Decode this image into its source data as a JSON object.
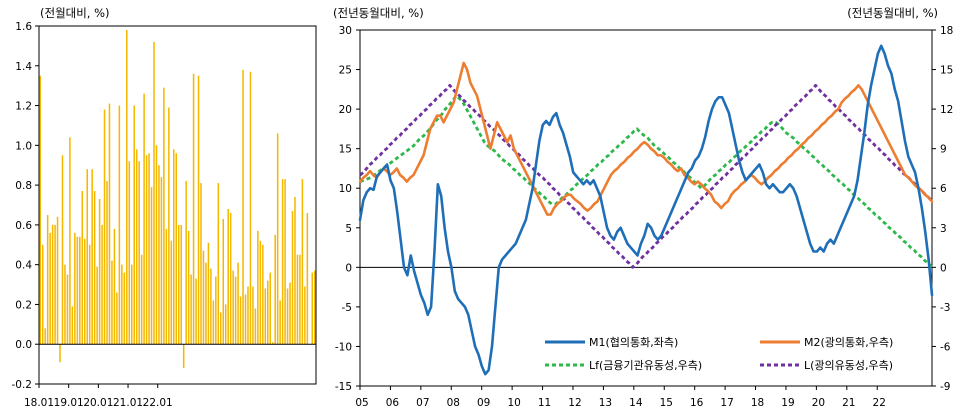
{
  "chart_data": [
    {
      "type": "bar",
      "unit_label": "(전월대비, %)",
      "ylim": [
        -0.2,
        1.6
      ],
      "y_ticks": [
        "1.6",
        "1.4",
        "1.2",
        "1.0",
        "0.8",
        "0.6",
        "0.4",
        "0.2",
        "0.0",
        "-0.2"
      ],
      "x_ticks": [
        "18.01",
        "19.01",
        "20.01",
        "21.01",
        "22.01"
      ],
      "bar_color": "#f5b800",
      "values": [
        1.35,
        0.5,
        0.08,
        0.65,
        0.56,
        0.6,
        0.6,
        0.64,
        -0.09,
        0.95,
        0.4,
        0.35,
        1.04,
        0.19,
        0.56,
        0.54,
        0.54,
        0.77,
        0.53,
        0.88,
        0.5,
        0.88,
        0.77,
        0.39,
        0.73,
        0.6,
        1.18,
        0.82,
        1.21,
        0.42,
        0.58,
        0.26,
        1.2,
        0.4,
        0.36,
        1.58,
        0.92,
        0.4,
        1.2,
        0.98,
        0.92,
        0.45,
        1.26,
        0.95,
        0.96,
        0.79,
        1.52,
        1.0,
        0.9,
        0.84,
        1.29,
        0.58,
        1.19,
        0.52,
        0.98,
        0.96,
        0.6,
        0.6,
        -0.12,
        0.82,
        0.57,
        0.35,
        1.36,
        0.33,
        1.35,
        0.81,
        0.47,
        0.41,
        0.51,
        0.38,
        0.22,
        0.34,
        0.81,
        0.16,
        0.63,
        0.2,
        0.68,
        0.66,
        0.37,
        0.34,
        0.41,
        0.24,
        1.38,
        0.25,
        0.29,
        1.37,
        0.29,
        0.18,
        0.57,
        0.52,
        0.5,
        0.28,
        0.32,
        0.36,
        0.01,
        0.55,
        1.06,
        0.22,
        0.83,
        0.83,
        0.28,
        0.31,
        0.67,
        0.74,
        0.45,
        0.45,
        0.83,
        0.29,
        0.66,
        0.0,
        0.36,
        0.37
      ]
    },
    {
      "type": "line",
      "unit_label_left": "(전년동월대비, %)",
      "unit_label_right": "(전년동월대비, %)",
      "ylim_left": [
        -15,
        30
      ],
      "ylim_right": [
        -9,
        18
      ],
      "y_ticks_left": [
        "30",
        "25",
        "20",
        "15",
        "10",
        "5",
        "0",
        "-5",
        "-10",
        "-15"
      ],
      "y_ticks_right": [
        "18",
        "15",
        "12",
        "9",
        "6",
        "3",
        "0",
        "-3",
        "-6",
        "-9"
      ],
      "x_ticks": [
        "05",
        "06",
        "07",
        "08",
        "09",
        "10",
        "11",
        "12",
        "13",
        "14",
        "15",
        "16",
        "17",
        "18",
        "19",
        "20",
        "21",
        "22"
      ],
      "series": [
        {
          "name": "M1(협의통화,좌측)",
          "axis": "left",
          "color": "#1f6fb8",
          "dash": "solid",
          "values": [
            6.0,
            8.5,
            9.5,
            10.0,
            9.8,
            11.5,
            12.0,
            12.5,
            13.0,
            11.0,
            10.0,
            7.0,
            3.5,
            0.0,
            -1.0,
            1.5,
            -0.5,
            -2.0,
            -3.5,
            -4.5,
            -6.0,
            -5.0,
            2.0,
            10.5,
            9.0,
            5.0,
            2.0,
            0.0,
            -3.0,
            -4.0,
            -4.5,
            -5.0,
            -6.0,
            -8.0,
            -10.0,
            -11.0,
            -12.5,
            -13.5,
            -13.0,
            -10.0,
            -5.0,
            0.0,
            1.0,
            1.5,
            2.0,
            2.5,
            3.0,
            4.0,
            5.0,
            6.0,
            8.0,
            10.0,
            13.0,
            16.0,
            18.0,
            18.5,
            18.0,
            19.0,
            19.5,
            18.0,
            17.0,
            15.5,
            14.0,
            12.0,
            11.5,
            11.0,
            10.5,
            11.0,
            10.5,
            11.0,
            10.0,
            9.0,
            7.0,
            5.0,
            4.0,
            3.5,
            4.5,
            5.0,
            4.0,
            3.0,
            2.5,
            2.0,
            1.5,
            3.0,
            4.0,
            5.5,
            5.0,
            4.0,
            3.5,
            4.0,
            5.0,
            6.0,
            7.0,
            8.0,
            9.0,
            10.0,
            11.0,
            12.0,
            12.5,
            13.5,
            14.0,
            15.0,
            16.5,
            18.5,
            20.0,
            21.0,
            21.5,
            21.5,
            20.5,
            19.5,
            17.5,
            15.5,
            13.5,
            12.0,
            11.0,
            11.5,
            12.0,
            12.5,
            13.0,
            12.0,
            10.5,
            10.0,
            10.5,
            10.0,
            9.5,
            9.5,
            10.0,
            10.5,
            10.0,
            9.0,
            7.5,
            6.0,
            4.5,
            3.0,
            2.0,
            2.0,
            2.5,
            2.0,
            3.0,
            3.5,
            3.0,
            4.0,
            5.0,
            6.0,
            7.0,
            8.0,
            9.0,
            11.0,
            14.0,
            17.0,
            20.5,
            23.0,
            25.0,
            27.0,
            28.0,
            27.0,
            25.5,
            24.5,
            22.5,
            21.0,
            18.5,
            16.0,
            14.0,
            13.0,
            12.0,
            10.0,
            7.5,
            4.5,
            1.0,
            -3.5
          ]
        },
        {
          "name": "M2(광의통화,우측)",
          "axis": "right",
          "color": "#ed7d31",
          "dash": "solid",
          "values": [
            6.5,
            6.8,
            7.0,
            7.3,
            7.0,
            6.8,
            7.2,
            7.5,
            7.3,
            7.0,
            7.2,
            7.5,
            7.0,
            6.8,
            6.5,
            6.8,
            7.0,
            7.5,
            8.0,
            8.5,
            9.5,
            10.5,
            11.0,
            11.5,
            11.5,
            11.0,
            11.5,
            12.0,
            12.5,
            13.5,
            14.5,
            15.5,
            15.0,
            14.0,
            13.5,
            13.0,
            12.0,
            11.0,
            10.0,
            9.0,
            10.0,
            11.0,
            10.5,
            10.0,
            9.5,
            10.0,
            9.0,
            8.5,
            8.0,
            7.5,
            7.0,
            6.5,
            6.0,
            5.5,
            5.0,
            4.5,
            4.0,
            4.0,
            4.5,
            4.8,
            5.0,
            5.3,
            5.5,
            5.5,
            5.2,
            5.0,
            4.8,
            4.5,
            4.3,
            4.5,
            4.8,
            5.0,
            5.5,
            6.0,
            6.5,
            7.0,
            7.3,
            7.5,
            7.8,
            8.0,
            8.3,
            8.5,
            8.8,
            9.0,
            9.3,
            9.5,
            9.3,
            9.0,
            8.8,
            8.5,
            8.5,
            8.3,
            8.0,
            7.8,
            7.5,
            7.3,
            7.5,
            7.0,
            6.8,
            6.5,
            6.3,
            6.5,
            6.3,
            6.0,
            5.8,
            5.5,
            5.0,
            4.8,
            4.5,
            4.8,
            5.0,
            5.5,
            5.8,
            6.0,
            6.3,
            6.5,
            6.8,
            7.0,
            6.8,
            6.5,
            6.3,
            6.5,
            6.8,
            7.0,
            7.3,
            7.5,
            7.8,
            8.0,
            8.3,
            8.5,
            8.8,
            9.0,
            9.3,
            9.5,
            9.8,
            10.0,
            10.3,
            10.5,
            10.8,
            11.0,
            11.3,
            11.5,
            11.8,
            12.0,
            12.5,
            12.8,
            13.0,
            13.3,
            13.5,
            13.8,
            13.5,
            13.0,
            12.5,
            12.0,
            11.5,
            11.0,
            10.5,
            10.0,
            9.5,
            9.0,
            8.5,
            8.0,
            7.5,
            7.0,
            6.8,
            6.5,
            6.2,
            6.0,
            5.8,
            5.5,
            5.3,
            5.0
          ]
        },
        {
          "name": "Lf(금융기관유동성,우측)",
          "axis": "right",
          "color": "#2eb84b",
          "dash": "dashed",
          "values": [
            6.5,
            6.6,
            6.7,
            6.8,
            7.0,
            7.2,
            7.4,
            7.6,
            7.8,
            8.0,
            8.2,
            8.4,
            8.6,
            8.8,
            9.0,
            9.2,
            9.5,
            9.8,
            10.0,
            10.3,
            10.6,
            11.0,
            11.3,
            11.6,
            12.0,
            12.3,
            12.6,
            13.0,
            12.8,
            12.5,
            12.0,
            11.5,
            11.0,
            10.5,
            10.0,
            9.5,
            9.2,
            9.0,
            8.8,
            8.5,
            8.2,
            8.0,
            7.8,
            7.5,
            7.3,
            7.0,
            6.8,
            6.5,
            6.3,
            6.0,
            5.8,
            5.5,
            5.3,
            5.0,
            4.8,
            4.8,
            5.0,
            5.3,
            5.5,
            5.8,
            6.0,
            6.3,
            6.5,
            6.8,
            7.0,
            7.3,
            7.5,
            7.8,
            8.0,
            8.3,
            8.5,
            8.8,
            9.0,
            9.3,
            9.5,
            9.8,
            10.0,
            10.3,
            10.5,
            10.2,
            10.0,
            9.8,
            9.5,
            9.2,
            9.0,
            8.8,
            8.5,
            8.3,
            8.0,
            7.8,
            7.5,
            7.3,
            7.0,
            6.8,
            6.5,
            6.3,
            6.0,
            6.2,
            6.5,
            6.8,
            7.0,
            7.3,
            7.5,
            7.8,
            8.0,
            8.3,
            8.5,
            8.8,
            9.0,
            9.3,
            9.5,
            9.8,
            10.0,
            10.3,
            10.5,
            10.8,
            11.0,
            11.0,
            10.8,
            10.5,
            10.2,
            10.0,
            9.8,
            9.5,
            9.3,
            9.0,
            8.8,
            8.5,
            8.3,
            8.0,
            7.8,
            7.5,
            7.3,
            7.0,
            6.8,
            6.5,
            6.3,
            6.0,
            5.8,
            5.5,
            5.3,
            5.0,
            4.8,
            4.5,
            4.3,
            4.0,
            3.8,
            3.5,
            3.3,
            3.0,
            2.8,
            2.5,
            2.3,
            2.0,
            1.8,
            1.5,
            1.3,
            1.0,
            0.8,
            0.5,
            0.3,
            0.0
          ]
        },
        {
          "name": "L(광의유동성,우측)",
          "axis": "right",
          "color": "#7030a0",
          "dash": "dashed",
          "values": [
            7.0,
            7.2,
            7.5,
            7.8,
            8.0,
            8.3,
            8.5,
            8.8,
            9.0,
            9.3,
            9.5,
            9.8,
            10.0,
            10.3,
            10.5,
            10.8,
            11.0,
            11.3,
            11.5,
            11.8,
            12.0,
            12.3,
            12.5,
            12.8,
            13.0,
            13.3,
            13.5,
            13.8,
            13.5,
            13.2,
            13.0,
            12.7,
            12.5,
            12.2,
            12.0,
            11.7,
            11.5,
            11.2,
            11.0,
            10.7,
            10.5,
            10.2,
            10.0,
            9.7,
            9.5,
            9.2,
            9.0,
            8.7,
            8.5,
            8.2,
            8.0,
            7.7,
            7.5,
            7.2,
            7.0,
            6.8,
            6.5,
            6.3,
            6.0,
            5.8,
            5.5,
            5.3,
            5.0,
            4.8,
            4.5,
            4.3,
            4.0,
            3.8,
            3.5,
            3.3,
            3.0,
            2.8,
            2.5,
            2.3,
            2.0,
            1.8,
            1.5,
            1.3,
            1.0,
            0.8,
            0.5,
            0.3,
            0.0,
            0.2,
            0.5,
            0.8,
            1.0,
            1.3,
            1.5,
            1.8,
            2.0,
            2.3,
            2.5,
            2.8,
            3.0,
            3.3,
            3.5,
            3.8,
            4.0,
            4.3,
            4.5,
            4.8,
            5.0,
            5.3,
            5.5,
            5.8,
            6.0,
            6.3,
            6.5,
            6.8,
            7.0,
            7.3,
            7.5,
            7.8,
            8.0,
            8.3,
            8.5,
            8.8,
            9.0,
            9.3,
            9.5,
            9.8,
            10.0,
            10.3,
            10.5,
            10.8,
            11.0,
            11.3,
            11.5,
            11.8,
            12.0,
            12.3,
            12.5,
            12.8,
            13.0,
            13.3,
            13.5,
            13.8,
            13.5,
            13.2,
            13.0,
            12.7,
            12.5,
            12.2,
            12.0,
            11.7,
            11.5,
            11.2,
            11.0,
            10.7,
            10.5,
            10.2,
            10.0,
            9.7,
            9.5,
            9.2,
            9.0,
            8.7,
            8.5,
            8.2,
            8.0,
            7.7,
            7.5,
            7.2,
            7.0,
            6.8,
            6.5,
            6.3,
            6.0,
            5.8,
            5.5,
            5.3,
            5.0
          ]
        }
      ]
    }
  ]
}
